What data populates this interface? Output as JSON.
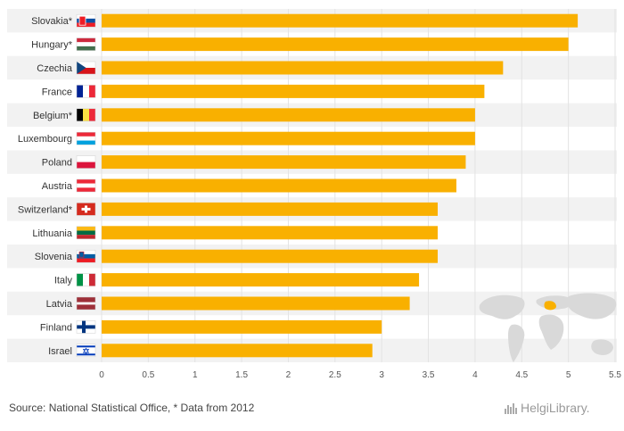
{
  "chart_data": {
    "type": "bar",
    "orientation": "horizontal",
    "title": "",
    "xlabel": "",
    "ylabel": "",
    "xlim": [
      0,
      5.5
    ],
    "ticks": [
      "0",
      "0.5",
      "1",
      "1.5",
      "2",
      "2.5",
      "3",
      "3.5",
      "4",
      "4.5",
      "5",
      "5.5"
    ],
    "tick_values": [
      0,
      0.5,
      1,
      1.5,
      2,
      2.5,
      3,
      3.5,
      4,
      4.5,
      5,
      5.5
    ],
    "categories": [
      "Slovakia*",
      "Hungary*",
      "Czechia",
      "France",
      "Belgium*",
      "Luxembourg",
      "Poland",
      "Austria",
      "Switzerland*",
      "Lithuania",
      "Slovenia",
      "Italy",
      "Latvia",
      "Finland",
      "Israel"
    ],
    "values": [
      5.1,
      5.0,
      4.3,
      4.1,
      4.0,
      4.0,
      3.9,
      3.8,
      3.6,
      3.6,
      3.6,
      3.4,
      3.3,
      3.0,
      2.9
    ],
    "flags": [
      "slovakia-flag-icon",
      "hungary-flag-icon",
      "czechia-flag-icon",
      "france-flag-icon",
      "belgium-flag-icon",
      "luxembourg-flag-icon",
      "poland-flag-icon",
      "austria-flag-icon",
      "switzerland-flag-icon",
      "lithuania-flag-icon",
      "slovenia-flag-icon",
      "italy-flag-icon",
      "latvia-flag-icon",
      "finland-flag-icon",
      "israel-flag-icon"
    ],
    "bar_color": "#F9B000",
    "grid": true
  },
  "footer": {
    "source": "Source: National Statistical Office, * Data from 2012",
    "brand": "HelgiLibrary."
  }
}
